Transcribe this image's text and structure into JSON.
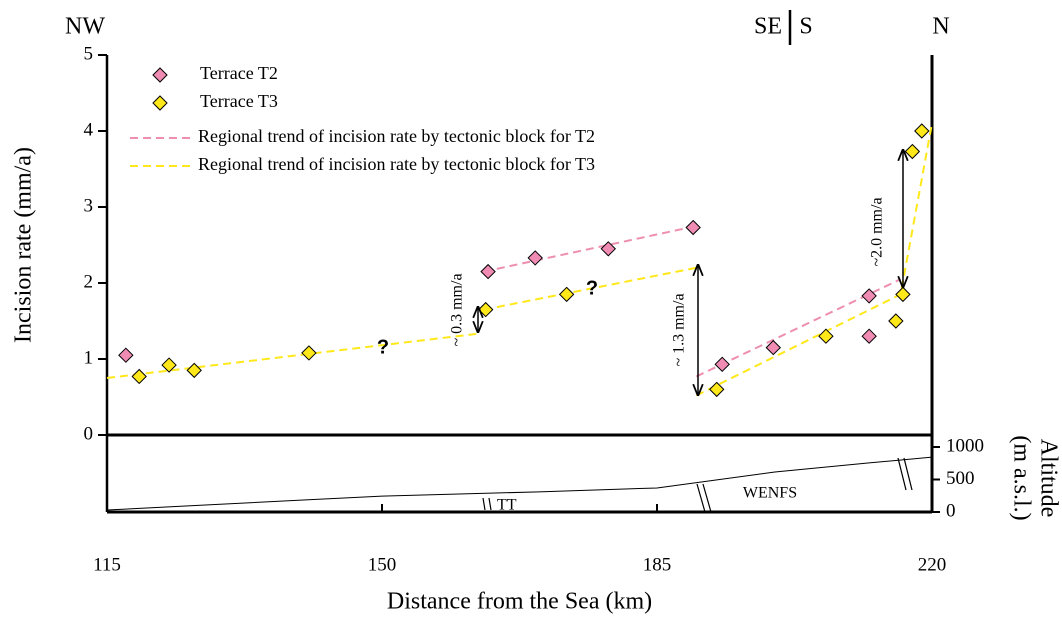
{
  "chart_data": {
    "type": "scatter",
    "corner_labels": [
      "NW",
      "SE",
      "S",
      "N"
    ],
    "xlabel": "Distance from the Sea (km)",
    "ylabel": "Incision rate (mm/a)",
    "xlim": [
      115,
      220
    ],
    "xticks": [
      115,
      150,
      185,
      220
    ],
    "ylim": [
      0,
      5
    ],
    "yticks": [
      0,
      1,
      2,
      3,
      4,
      5
    ],
    "series": [
      {
        "name": "Terrace T2",
        "color": "#f08cb4",
        "kind": "points",
        "x": [
          117.4,
          163.5,
          169.5,
          178.8,
          189.6,
          193.3,
          199.8,
          212,
          212
        ],
        "values": [
          1.05,
          2.15,
          2.33,
          2.45,
          2.73,
          0.93,
          1.15,
          1.83,
          1.3
        ]
      },
      {
        "name": "Terrace T3",
        "color": "#ffe81a",
        "kind": "points",
        "x": [
          119.1,
          122.9,
          126.1,
          140.7,
          163.2,
          173.5,
          192.6,
          206.5,
          215.4,
          216.3,
          217.5,
          218.7
        ],
        "values": [
          0.77,
          0.92,
          0.85,
          1.08,
          1.65,
          1.85,
          0.6,
          1.3,
          1.5,
          1.85,
          3.73,
          4.0
        ]
      },
      {
        "name": "Regional trend of incision rate by tectonic block for T2",
        "color": "#ee8fb0",
        "kind": "dashed",
        "x": [
          163,
          190,
          null,
          190,
          216
        ],
        "values": [
          2.15,
          2.75,
          null,
          0.77,
          2.05
        ]
      },
      {
        "name": "Regional trend of incision rate by tectonic block for T3",
        "color": "#ffe81a",
        "kind": "dashed",
        "x": [
          115,
          162,
          null,
          163,
          190,
          null,
          190,
          216,
          220
        ],
        "values": [
          0.75,
          1.33,
          null,
          1.65,
          2.2,
          null,
          0.52,
          1.85,
          4.1
        ]
      }
    ],
    "question_marks": [
      "?",
      "?"
    ],
    "arrow_labels": [
      "~ 0.3 mm/a",
      "~ 1.3 mm/a",
      "~2.0 mm/a"
    ],
    "profile": {
      "ylabel": [
        "Altitude",
        "(m a.s.l.)"
      ],
      "ylim": [
        0,
        1000
      ],
      "yticks": [
        0,
        500,
        1000
      ],
      "x": [
        115,
        125,
        140,
        150,
        170,
        185,
        200,
        212,
        220
      ],
      "values": [
        30,
        92,
        185,
        245,
        310,
        370,
        615,
        755,
        845
      ],
      "unit_labels": [
        "TT",
        "WENFS"
      ]
    }
  }
}
